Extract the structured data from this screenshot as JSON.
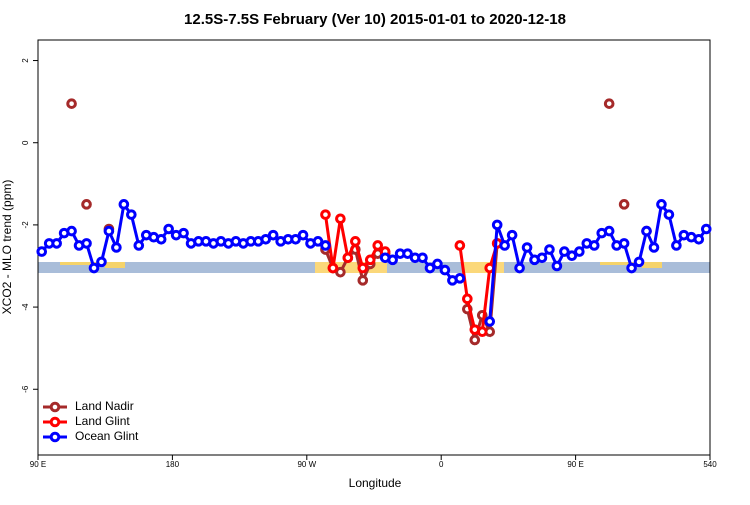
{
  "chart_data": {
    "type": "line",
    "title": "12.5S-7.5S February (Ver 10)   2015-01-01 to 2020-12-18",
    "x_label": "Longitude",
    "y_label": "XCO2 - MLO trend (ppm)",
    "xlim": [
      90,
      540
    ],
    "ylim": [
      -7.6,
      2.5
    ],
    "xticks": [
      {
        "value": 90,
        "label": "90 E"
      },
      180,
      {
        "value": 270,
        "label": "90 W"
      },
      {
        "value": 360,
        "label": "0"
      },
      {
        "value": 450,
        "label": "90 E"
      },
      540
    ],
    "yticks": [
      2,
      0,
      -2,
      -4,
      -6
    ],
    "legend": "bottom-left",
    "x": [
      92.5,
      97.5,
      102.5,
      107.5,
      112.5,
      117.5,
      122.5,
      127.5,
      132.5,
      137.5,
      142.5,
      147.5,
      152.5,
      157.5,
      162.5,
      167.5,
      172.5,
      177.5,
      182.5,
      187.5,
      192.5,
      197.5,
      202.5,
      207.5,
      212.5,
      217.5,
      222.5,
      227.5,
      232.5,
      237.5,
      242.5,
      247.5,
      252.5,
      257.5,
      262.5,
      267.5,
      272.5,
      277.5,
      282.5,
      287.5,
      292.5,
      297.5,
      302.5,
      307.5,
      312.5,
      317.5,
      322.5,
      327.5,
      332.5,
      337.5,
      342.5,
      347.5,
      352.5,
      357.5,
      362.5,
      367.5,
      372.5,
      377.5,
      382.5,
      387.5,
      392.5,
      397.5,
      402.5,
      407.5,
      412.5,
      417.5,
      422.5,
      427.5,
      432.5,
      437.5,
      442.5,
      447.5,
      452.5,
      457.5,
      462.5,
      467.5,
      472.5,
      477.5,
      482.5,
      487.5,
      492.5,
      497.5,
      502.5,
      507.5,
      512.5,
      517.5,
      522.5,
      527.5,
      532.5,
      537.5
    ],
    "series": [
      {
        "name": "Land Nadir",
        "color": "#a52a2a",
        "values": [
          null,
          null,
          null,
          null,
          0.95,
          null,
          -1.5,
          null,
          null,
          -2.1,
          null,
          null,
          null,
          null,
          null,
          null,
          null,
          null,
          null,
          null,
          null,
          null,
          null,
          null,
          null,
          null,
          null,
          null,
          null,
          null,
          null,
          null,
          null,
          null,
          null,
          null,
          null,
          null,
          -2.6,
          -3.05,
          -3.15,
          -2.8,
          -2.6,
          -3.35,
          -2.95,
          -2.7,
          -2.7,
          null,
          null,
          null,
          null,
          null,
          null,
          null,
          null,
          null,
          null,
          -4.05,
          -4.8,
          -4.2,
          -4.6,
          -2.45,
          null,
          null,
          null,
          null,
          null,
          null,
          null,
          null,
          null,
          null,
          null,
          null,
          null,
          null,
          0.95,
          null,
          -1.5,
          null,
          null,
          -2.15,
          null,
          null,
          null,
          null,
          null,
          null,
          null,
          null
        ]
      },
      {
        "name": "Land Glint",
        "color": "#ff0000",
        "values": [
          null,
          null,
          null,
          null,
          null,
          null,
          null,
          null,
          null,
          null,
          null,
          null,
          null,
          null,
          null,
          null,
          null,
          null,
          null,
          null,
          null,
          null,
          null,
          null,
          null,
          null,
          null,
          null,
          null,
          null,
          null,
          null,
          null,
          null,
          null,
          null,
          null,
          null,
          -1.75,
          -3.05,
          -1.85,
          -2.8,
          -2.4,
          -3.05,
          -2.85,
          -2.5,
          -2.65,
          null,
          null,
          null,
          null,
          null,
          null,
          null,
          null,
          null,
          -2.5,
          -3.8,
          -4.55,
          -4.6,
          -3.05,
          -2.45,
          null,
          null,
          null,
          null,
          null,
          null,
          null,
          null,
          null,
          null,
          null,
          null,
          null,
          null,
          null,
          null,
          null,
          null,
          null,
          null,
          null,
          null,
          null,
          null,
          null,
          null,
          null,
          null
        ]
      },
      {
        "name": "Ocean Glint",
        "color": "#0000ff",
        "values": [
          -2.65,
          -2.45,
          -2.45,
          -2.2,
          -2.15,
          -2.5,
          -2.45,
          -3.05,
          -2.9,
          -2.15,
          -2.55,
          -1.5,
          -1.75,
          -2.5,
          -2.25,
          -2.3,
          -2.35,
          -2.1,
          -2.25,
          -2.2,
          -2.45,
          -2.4,
          -2.4,
          -2.45,
          -2.4,
          -2.45,
          -2.4,
          -2.45,
          -2.4,
          -2.4,
          -2.35,
          -2.25,
          -2.4,
          -2.35,
          -2.35,
          -2.25,
          -2.45,
          -2.4,
          -2.5,
          null,
          null,
          null,
          null,
          null,
          null,
          null,
          -2.8,
          -2.85,
          -2.7,
          -2.7,
          -2.8,
          -2.8,
          -3.05,
          -2.95,
          -3.1,
          -3.35,
          -3.3,
          null,
          null,
          null,
          -4.35,
          -2.0,
          -2.5,
          -2.25,
          -3.05,
          -2.55,
          -2.85,
          -2.8,
          -2.6,
          -3.0,
          -2.65,
          -2.75,
          -2.65,
          -2.45,
          -2.5,
          -2.2,
          -2.15,
          -2.5,
          -2.45,
          -3.05,
          -2.9,
          -2.15,
          -2.55,
          -1.5,
          -1.75,
          -2.5,
          -2.25,
          -2.3,
          -2.35,
          -2.1
        ]
      }
    ]
  }
}
